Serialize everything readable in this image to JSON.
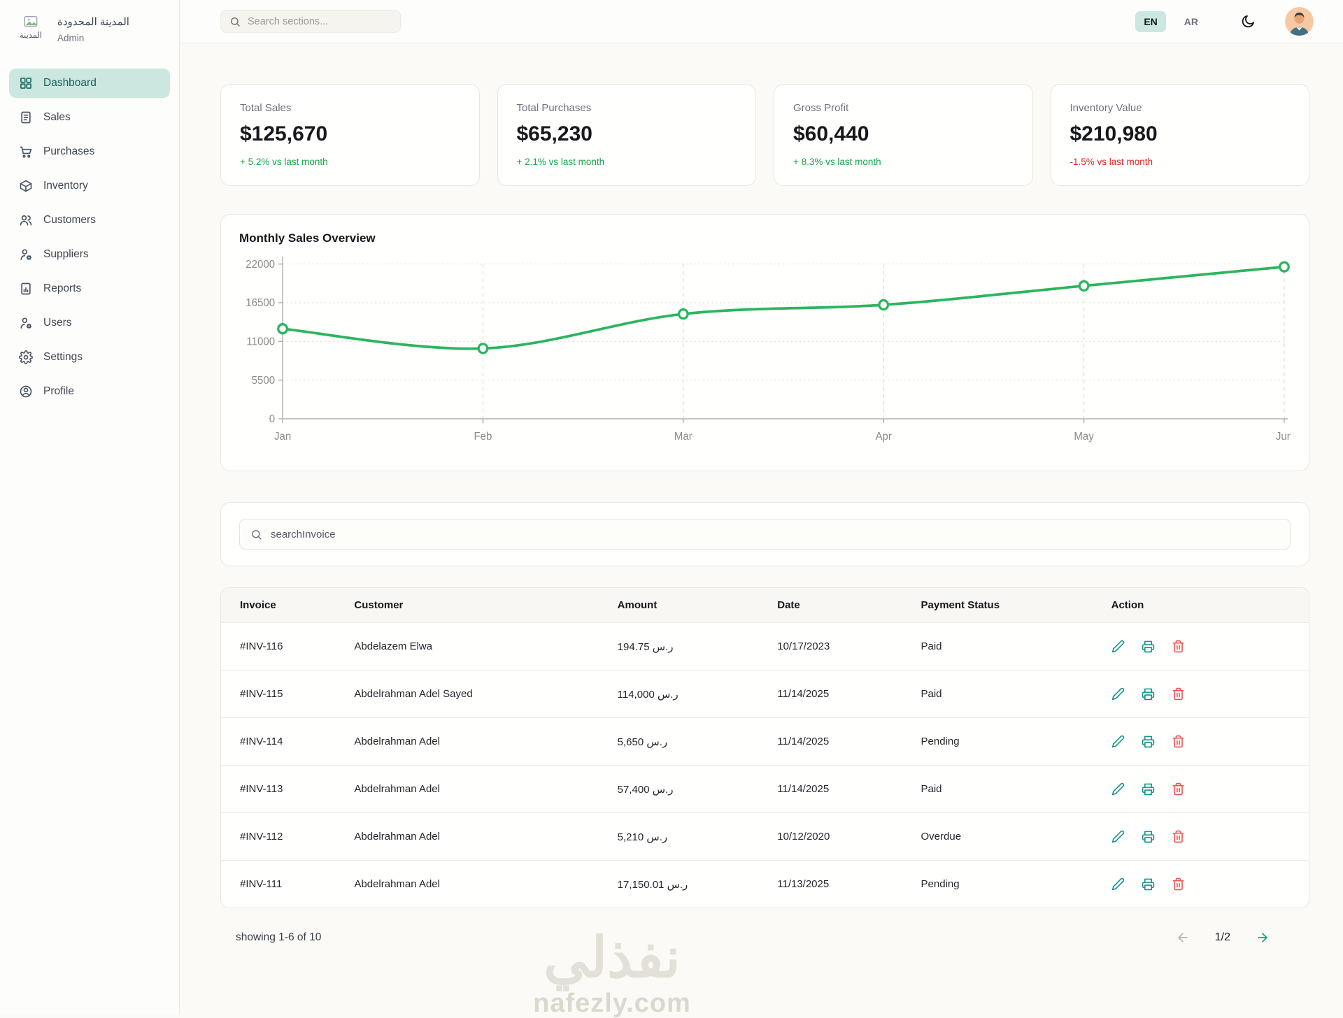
{
  "app": {
    "company_name": "المدينة المحدودة",
    "company_logo_text": "المدينة",
    "role": "Admin"
  },
  "topbar": {
    "search_placeholder": "Search sections...",
    "languages": [
      {
        "code": "EN",
        "active": true
      },
      {
        "code": "AR",
        "active": false
      }
    ],
    "theme_icon": "moon-icon"
  },
  "sidebar": {
    "items": [
      {
        "label": "Dashboard",
        "icon": "dashboard-icon",
        "active": true
      },
      {
        "label": "Sales",
        "icon": "invoice-icon",
        "active": false
      },
      {
        "label": "Purchases",
        "icon": "cart-icon",
        "active": false
      },
      {
        "label": "Inventory",
        "icon": "package-icon",
        "active": false
      },
      {
        "label": "Customers",
        "icon": "users-icon",
        "active": false
      },
      {
        "label": "Suppliers",
        "icon": "user-gear-icon",
        "active": false
      },
      {
        "label": "Reports",
        "icon": "report-icon",
        "active": false
      },
      {
        "label": "Users",
        "icon": "user-gear-icon",
        "active": false
      },
      {
        "label": "Settings",
        "icon": "gear-icon",
        "active": false
      },
      {
        "label": "Profile",
        "icon": "profile-icon",
        "active": false
      }
    ]
  },
  "stats": [
    {
      "title": "Total Sales",
      "value": "$125,670",
      "change": "+ 5.2% vs last month",
      "trend": "up"
    },
    {
      "title": "Total Purchases",
      "value": "$65,230",
      "change": "+ 2.1% vs last month",
      "trend": "up"
    },
    {
      "title": "Gross Profit",
      "value": "$60,440",
      "change": "+ 8.3% vs last month",
      "trend": "up"
    },
    {
      "title": "Inventory Value",
      "value": "$210,980",
      "change": "-1.5% vs last month",
      "trend": "down"
    }
  ],
  "chart_data": {
    "type": "line",
    "title": "Monthly Sales Overview",
    "categories": [
      "Jan",
      "Feb",
      "Mar",
      "Apr",
      "May",
      "Jun"
    ],
    "values": [
      12800,
      10000,
      14900,
      16200,
      18900,
      21600
    ],
    "yticks": [
      0,
      5500,
      11000,
      16500,
      22000
    ],
    "ylim": [
      0,
      22000
    ],
    "xlabel": "",
    "ylabel": "",
    "grid": true,
    "legend": false,
    "line_color": "#2bb55e"
  },
  "invoice_search": {
    "placeholder": "searchInvoice"
  },
  "table": {
    "headers": [
      "Invoice",
      "Customer",
      "Amount",
      "Date",
      "Payment Status",
      "Action"
    ],
    "rows": [
      {
        "invoice": "#INV-116",
        "customer": "Abdelazem Elwa",
        "amount": "194.75 ر.س",
        "date": "10/17/2023",
        "status": "Paid"
      },
      {
        "invoice": "#INV-115",
        "customer": "Abdelrahman Adel Sayed",
        "amount": "114,000 ر.س",
        "date": "11/14/2025",
        "status": "Paid"
      },
      {
        "invoice": "#INV-114",
        "customer": "Abdelrahman Adel",
        "amount": "5,650 ر.س",
        "date": "11/14/2025",
        "status": "Pending"
      },
      {
        "invoice": "#INV-113",
        "customer": "Abdelrahman Adel",
        "amount": "57,400 ر.س",
        "date": "11/14/2025",
        "status": "Paid"
      },
      {
        "invoice": "#INV-112",
        "customer": "Abdelrahman Adel",
        "amount": "5,210 ر.س",
        "date": "10/12/2020",
        "status": "Overdue"
      },
      {
        "invoice": "#INV-111",
        "customer": "Abdelrahman Adel",
        "amount": "17,150.01 ر.س",
        "date": "11/13/2025",
        "status": "Pending"
      }
    ]
  },
  "footer": {
    "showing": "showing 1-6 of 10",
    "page": "1/2"
  },
  "watermark": {
    "logo_text": "نفذلي",
    "site": "nafezly.com"
  },
  "colors": {
    "accent_teal": "#0f9488",
    "accent_teal_light": "#cbe7e0",
    "active_text": "#175f58",
    "positive": "#16a34a",
    "negative": "#dc2626",
    "danger": "#ef5350",
    "chart_line": "#2bb55e"
  }
}
